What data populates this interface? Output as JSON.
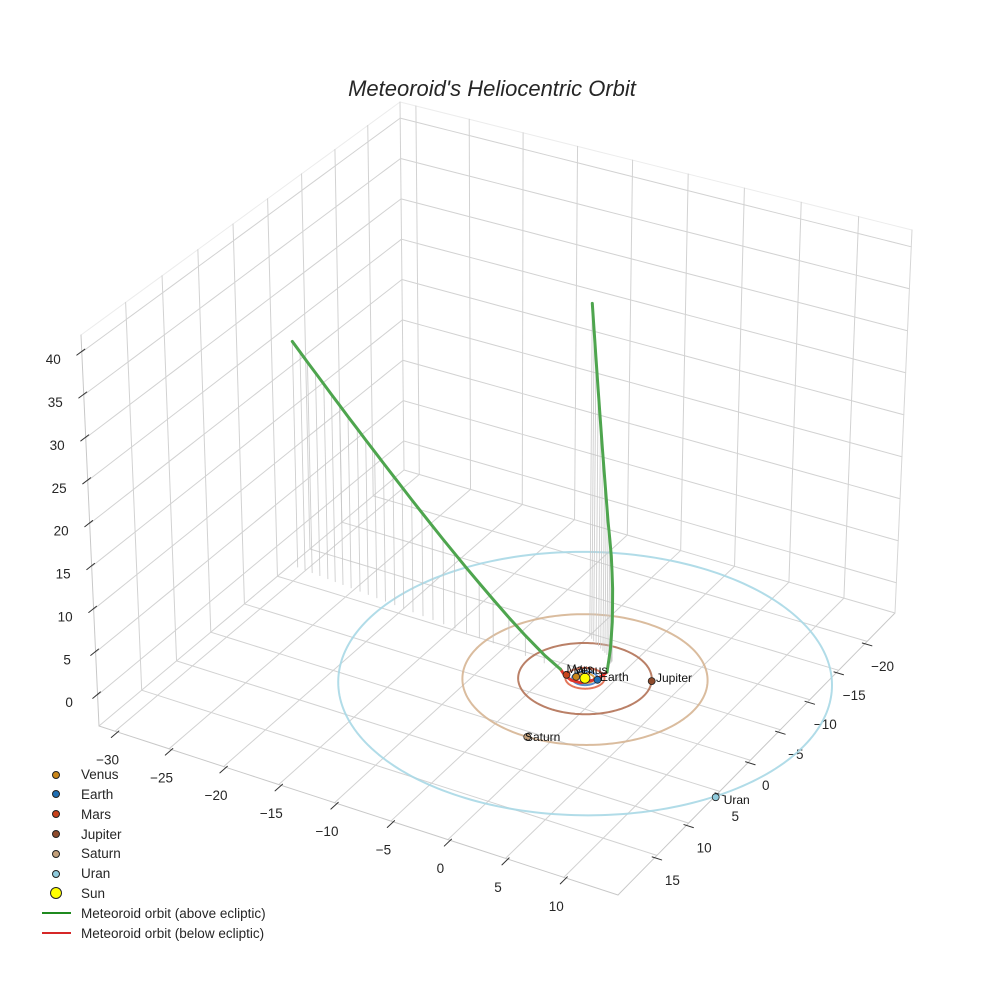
{
  "chart_data": {
    "type": "line",
    "projection": "3d",
    "title": "Meteoroid's Heliocentric Orbit",
    "xlabel": "",
    "ylabel": "",
    "zlabel": "",
    "grid": true,
    "legend_position": "lower left",
    "axes": {
      "x": {
        "range": [
          -31.5,
          14.6
        ],
        "ticks": [
          -30,
          -25,
          -20,
          -15,
          -10,
          -5,
          0,
          5,
          10
        ],
        "tick_labels": [
          "−30",
          "−25",
          "−20",
          "−15",
          "−10",
          "−5",
          "0",
          "5",
          "10"
        ]
      },
      "y": {
        "range": [
          -25.0,
          21.0
        ],
        "ticks": [
          -20,
          -15,
          -10,
          -5,
          0,
          5,
          10,
          15
        ],
        "tick_labels": [
          "−20",
          "−15",
          "−10",
          "−5",
          "0",
          "5",
          "10",
          "15"
        ]
      },
      "z": {
        "range": [
          -3.6,
          42.0
        ],
        "ticks": [
          0,
          5,
          10,
          15,
          20,
          25,
          30,
          35,
          40
        ],
        "tick_labels": [
          "0",
          "5",
          "10",
          "15",
          "20",
          "25",
          "30",
          "35",
          "40"
        ]
      }
    },
    "bodies": [
      {
        "name": "Venus",
        "label": "Venus",
        "color": "#c9861a",
        "marker_radius": 3.5,
        "position": [
          -0.7,
          0.16,
          0
        ],
        "orbit_radius": 0.72,
        "orbit_color": "#d99a3c"
      },
      {
        "name": "Earth",
        "label": "Earth",
        "color": "#1f6fb4",
        "marker_radius": 3.5,
        "position": [
          0.955,
          -0.29,
          0
        ],
        "orbit_radius": 1.0,
        "orbit_color": "#4682c8"
      },
      {
        "name": "Mars",
        "label": "Mars",
        "color": "#c8421a",
        "marker_radius": 3.5,
        "position": [
          -1.49,
          0.28,
          0
        ],
        "orbit_radius": 1.52,
        "orbit_color": "#e0684a"
      },
      {
        "name": "Jupiter",
        "label": "Jupiter",
        "color": "#8e4b2c",
        "marker_radius": 3.5,
        "position": [
          4.7,
          -2.23,
          0
        ],
        "orbit_radius": 5.2,
        "orbit_color": "#b37257"
      },
      {
        "name": "Saturn",
        "label": "Saturn",
        "color": "#c4a07a",
        "marker_radius": 3.5,
        "position": [
          0.3,
          9.54,
          0
        ],
        "orbit_radius": 9.54,
        "orbit_color": "#d6b593"
      },
      {
        "name": "Uran",
        "label": "Uran",
        "color": "#8fcbdd",
        "marker_radius": 3.5,
        "position": [
          16.7,
          9.7,
          0
        ],
        "orbit_radius": 19.2,
        "orbit_color": "#a8d8e6"
      },
      {
        "name": "Sun",
        "color": "#ffff00",
        "marker_radius": 5.0,
        "position": [
          0,
          0,
          0
        ]
      }
    ],
    "series": [
      {
        "name": "Meteoroid orbit (above ecliptic)",
        "color": "#1f8a1f",
        "plot_color": "#4ea54e",
        "drop_lines": true,
        "segments": [
          [
            [
              -28.3,
              -3.1,
              27.1
            ],
            [
              -27.55,
              -3.02,
              26.16
            ],
            [
              -26.82,
              -2.93,
              25.26
            ],
            [
              -26.04,
              -2.85,
              24.3
            ],
            [
              -25.23,
              -2.76,
              23.31
            ],
            [
              -24.48,
              -2.67,
              22.39
            ],
            [
              -23.7,
              -2.59,
              21.45
            ],
            [
              -22.87,
              -2.49,
              20.45
            ],
            [
              -21.98,
              -2.4,
              19.4
            ],
            [
              -21.15,
              -2.3,
              18.42
            ],
            [
              -20.29,
              -2.21,
              17.42
            ],
            [
              -19.43,
              -2.11,
              16.43
            ],
            [
              -18.5,
              -2.01,
              15.36
            ],
            [
              -17.61,
              -1.91,
              14.36
            ],
            [
              -16.68,
              -1.8,
              13.31
            ],
            [
              -15.69,
              -1.69,
              12.22
            ],
            [
              -14.7,
              -1.58,
              11.15
            ],
            [
              -13.64,
              -1.46,
              10.01
            ],
            [
              -12.54,
              -1.34,
              8.86
            ],
            [
              -11.4,
              -1.21,
              7.69
            ],
            [
              -10.15,
              -1.08,
              6.44
            ],
            [
              -8.8,
              -0.93,
              5.14
            ],
            [
              -7.27,
              -0.75,
              3.72
            ],
            [
              -5.68,
              -0.58,
              2.34
            ],
            [
              -3.86,
              -0.37,
              0.93
            ],
            [
              -2.3,
              -0.2,
              0.0
            ]
          ],
          [
            [
              1.05,
              -1.64,
              0.0
            ],
            [
              0.85,
              -2.27,
              0.83
            ],
            [
              0.64,
              -2.9,
              1.65
            ],
            [
              0.63,
              -3.06,
              3.13
            ],
            [
              0.61,
              -3.22,
              4.6
            ],
            [
              0.58,
              -3.29,
              6.5
            ],
            [
              0.54,
              -3.35,
              8.4
            ],
            [
              0.42,
              -3.45,
              10.2
            ],
            [
              0.29,
              -3.54,
              12.0
            ],
            [
              0.04,
              -3.73,
              13.75
            ],
            [
              -0.22,
              -3.91,
              15.5
            ],
            [
              -0.5,
              -4.09,
              18.0
            ],
            [
              -0.77,
              -4.26,
              20.5
            ],
            [
              -1.1,
              -4.49,
              23.4
            ],
            [
              -1.42,
              -4.72,
              26.3
            ],
            [
              -1.77,
              -4.94,
              29.85
            ],
            [
              -2.11,
              -5.16,
              33.4
            ],
            [
              -2.42,
              -5.4,
              36.3
            ],
            [
              -2.73,
              -5.64,
              39.2
            ]
          ]
        ]
      },
      {
        "name": "Meteoroid orbit (below ecliptic)",
        "color": "#d62728",
        "plot_color": "#e0352b",
        "drop_lines": false,
        "segments": [
          [
            [
              -2.3,
              -0.2,
              0.0
            ],
            [
              -1.7,
              0.2,
              -0.2
            ],
            [
              -1.0,
              0.4,
              -0.35
            ],
            [
              -0.2,
              0.3,
              -0.4
            ],
            [
              0.5,
              -0.4,
              -0.3
            ],
            [
              0.9,
              -1.1,
              -0.15
            ],
            [
              1.05,
              -1.64,
              0.0
            ]
          ]
        ]
      }
    ]
  }
}
